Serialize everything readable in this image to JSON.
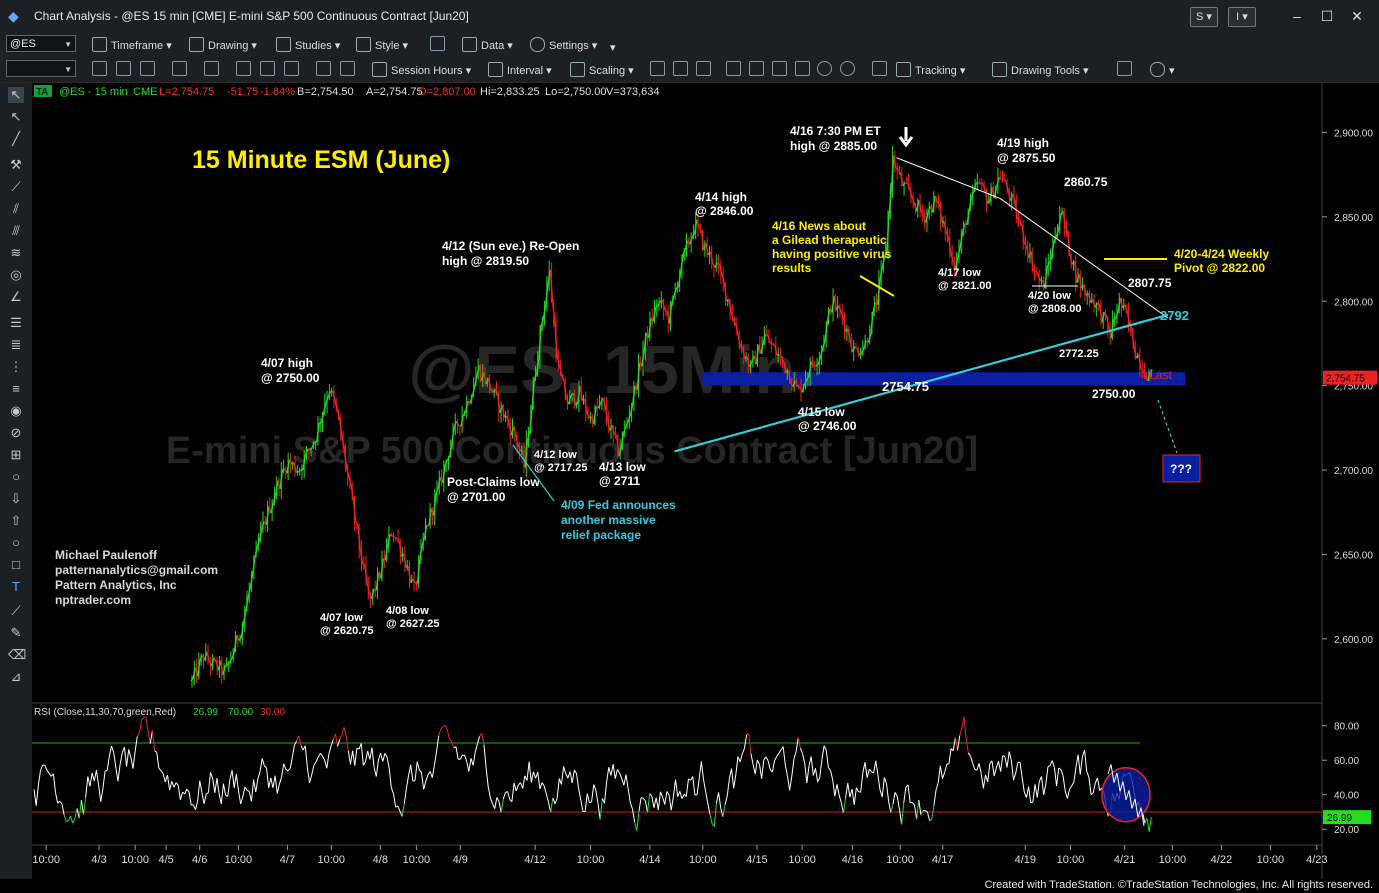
{
  "window": {
    "title": "Chart Analysis - @ES 15 min [CME] E-mini S&P 500 Continuous Contract [Jun20]",
    "s_button": "S",
    "i_button": "I",
    "minimize": "–",
    "maximize": "☐",
    "close": "✕"
  },
  "toolbar1": {
    "symbol": "@ES",
    "timeframe": "Timeframe",
    "drawing": "Drawing",
    "studies": "Studies",
    "style": "Style",
    "data": "Data",
    "settings": "Settings"
  },
  "toolbar2": {
    "session_hours": "Session Hours",
    "interval": "Interval",
    "scaling": "Scaling",
    "tracking": "Tracking",
    "drawing_tools": "Drawing Tools"
  },
  "status": {
    "ta": "TA",
    "symbol": "@ES - 15 min",
    "exchange": "CME",
    "last": "L=2,754.75",
    "change": "-51.75",
    "pct": "-1.84%",
    "bid": "B=2,754.50",
    "ask": "A=2,754.75",
    "open": "O=2,807.00",
    "high": "Hi=2,833.25",
    "low": "Lo=2,750.00",
    "volume": "V=373,634"
  },
  "watermark": {
    "line1": "@ES, 15Min",
    "line2": "E-mini S&P 500 Continuous Contract [Jun20]"
  },
  "annotations": {
    "title": "15 Minute ESM (June)",
    "a_416_hi_1": "4/16 7:30 PM ET",
    "a_416_hi_2": "high @ 2885.00",
    "a_419_1": "4/19 high",
    "a_419_2": "@ 2875.50",
    "a_2860": "2860.75",
    "a_414_1": "4/14 high",
    "a_414_2": "@ 2846.00",
    "a_news_1": "4/16 News about",
    "a_news_2": "a Gilead therapeutic",
    "a_news_3": "having positive virus",
    "a_news_4": "results",
    "a_412_1": "4/12 (Sun eve.) Re-Open",
    "a_412_2": "high @ 2819.50",
    "a_417_1": "4/17 low",
    "a_417_2": "@ 2821.00",
    "a_pivot_1": "4/20-4/24 Weekly",
    "a_pivot_2": "Pivot @ 2822.00",
    "a_2807": "2807.75",
    "a_420_1": "4/20 low",
    "a_420_2": "@ 2808.00",
    "a_2792": "2792",
    "a_2772": "2772.25",
    "a_last": "Last",
    "a_2754": "2754.75",
    "a_2750": "2750.00",
    "a_407hi_1": "4/07 high",
    "a_407hi_2": "@ 2750.00",
    "a_415_1": "4/15 low",
    "a_415_2": "@ 2746.00",
    "a_412lo_1": "4/12 low",
    "a_412lo_2": "@ 2717.25",
    "a_413_1": "4/13 low",
    "a_413_2": "@ 2711",
    "a_pc_1": "Post-Claims low",
    "a_pc_2": "@ 2701.00",
    "a_fed_1": "4/09 Fed announces",
    "a_fed_2": "another massive",
    "a_fed_3": "relief package",
    "a_qqq": "???",
    "a_407lo_1": "4/07 low",
    "a_407lo_2": "@ 2620.75",
    "a_408_1": "4/08 low",
    "a_408_2": "@ 2627.25",
    "author_1": "Michael Paulenoff",
    "author_2": "patternanalytics@gmail.com",
    "author_3": "Pattern Analytics, Inc",
    "author_4": "nptrader.com"
  },
  "rsi": {
    "label": "RSI (Close,11,30,70,green,Red)",
    "value": "26.99",
    "ob": "70.00",
    "os": "30.00"
  },
  "colors": {
    "up": "#22dd22",
    "down": "#ee2222",
    "trend": "#33ccdd",
    "zone": "#0a1ea0",
    "annot_white": "#ffffff",
    "annot_yellow": "#ffee00",
    "annot_cyan": "#33ccdd"
  },
  "footer": "Created with TradeStation. ©TradeStation Technologies, Inc. All rights reserved.",
  "chart_data": {
    "type": "candlestick",
    "price_axis": [
      "2,900.00",
      "2,850.00",
      "2,800.00",
      "2,750.00",
      "2,700.00",
      "2,650.00",
      "2,600.00"
    ],
    "price_ticks": [
      2900,
      2850,
      2800,
      2750,
      2700,
      2650,
      2600
    ],
    "price_range": [
      2562,
      2921
    ],
    "last_badge": "2,754.75",
    "last_price": 2754.75,
    "rsi_axis": [
      "80.00",
      "60.00",
      "40.00",
      "20.00"
    ],
    "rsi_ticks": [
      80,
      60,
      40,
      20
    ],
    "rsi_range": [
      12,
      92
    ],
    "rsi_badge": "26.99",
    "time_labels": [
      "10:00",
      "4/3",
      "10:00",
      "4/5",
      "4/6",
      "10:00",
      "4/7",
      "10:00",
      "4/8",
      "10:00",
      "4/9",
      "4/12",
      "10:00",
      "4/14",
      "10:00",
      "4/15",
      "10:00",
      "4/16",
      "10:00",
      "4/17",
      "4/19",
      "10:00",
      "4/21",
      "10:00",
      "4/22",
      "10:00",
      "4/23"
    ],
    "time_frac": [
      0.011,
      0.052,
      0.08,
      0.104,
      0.13,
      0.16,
      0.198,
      0.232,
      0.27,
      0.298,
      0.332,
      0.39,
      0.433,
      0.479,
      0.52,
      0.562,
      0.597,
      0.636,
      0.673,
      0.706,
      0.77,
      0.805,
      0.847,
      0.884,
      0.922,
      0.96,
      0.996
    ],
    "price_path": [
      [
        0.0,
        2575
      ],
      [
        0.01,
        2590
      ],
      [
        0.018,
        2585
      ],
      [
        0.03,
        2580
      ],
      [
        0.045,
        2610
      ],
      [
        0.06,
        2660
      ],
      [
        0.075,
        2690
      ],
      [
        0.085,
        2705
      ],
      [
        0.095,
        2700
      ],
      [
        0.11,
        2720
      ],
      [
        0.122,
        2750
      ],
      [
        0.13,
        2730
      ],
      [
        0.14,
        2690
      ],
      [
        0.15,
        2650
      ],
      [
        0.158,
        2621
      ],
      [
        0.168,
        2640
      ],
      [
        0.178,
        2665
      ],
      [
        0.188,
        2650
      ],
      [
        0.198,
        2628
      ],
      [
        0.208,
        2665
      ],
      [
        0.22,
        2690
      ],
      [
        0.232,
        2720
      ],
      [
        0.245,
        2740
      ],
      [
        0.255,
        2760
      ],
      [
        0.265,
        2750
      ],
      [
        0.272,
        2740
      ],
      [
        0.28,
        2730
      ],
      [
        0.288,
        2720
      ],
      [
        0.296,
        2702
      ],
      [
        0.304,
        2750
      ],
      [
        0.312,
        2790
      ],
      [
        0.318,
        2819
      ],
      [
        0.326,
        2760
      ],
      [
        0.334,
        2740
      ],
      [
        0.345,
        2745
      ],
      [
        0.355,
        2730
      ],
      [
        0.365,
        2740
      ],
      [
        0.372,
        2725
      ],
      [
        0.38,
        2711
      ],
      [
        0.388,
        2730
      ],
      [
        0.395,
        2750
      ],
      [
        0.405,
        2780
      ],
      [
        0.415,
        2800
      ],
      [
        0.425,
        2790
      ],
      [
        0.435,
        2820
      ],
      [
        0.448,
        2846
      ],
      [
        0.458,
        2830
      ],
      [
        0.468,
        2820
      ],
      [
        0.478,
        2800
      ],
      [
        0.488,
        2775
      ],
      [
        0.498,
        2760
      ],
      [
        0.51,
        2780
      ],
      [
        0.52,
        2770
      ],
      [
        0.53,
        2760
      ],
      [
        0.54,
        2746
      ],
      [
        0.55,
        2760
      ],
      [
        0.56,
        2770
      ],
      [
        0.57,
        2800
      ],
      [
        0.58,
        2790
      ],
      [
        0.59,
        2770
      ],
      [
        0.6,
        2775
      ],
      [
        0.61,
        2800
      ],
      [
        0.618,
        2830
      ],
      [
        0.624,
        2885
      ],
      [
        0.632,
        2870
      ],
      [
        0.642,
        2860
      ],
      [
        0.652,
        2850
      ],
      [
        0.662,
        2860
      ],
      [
        0.672,
        2840
      ],
      [
        0.68,
        2821
      ],
      [
        0.69,
        2850
      ],
      [
        0.7,
        2870
      ],
      [
        0.71,
        2860
      ],
      [
        0.72,
        2875
      ],
      [
        0.73,
        2860
      ],
      [
        0.74,
        2840
      ],
      [
        0.75,
        2820
      ],
      [
        0.758,
        2808
      ],
      [
        0.766,
        2830
      ],
      [
        0.774,
        2855
      ],
      [
        0.78,
        2835
      ],
      [
        0.788,
        2815
      ],
      [
        0.796,
        2805
      ],
      [
        0.804,
        2800
      ],
      [
        0.812,
        2790
      ],
      [
        0.818,
        2780
      ],
      [
        0.826,
        2800
      ],
      [
        0.833,
        2790
      ],
      [
        0.84,
        2772
      ],
      [
        0.848,
        2760
      ],
      [
        0.855,
        2755
      ]
    ],
    "rsi_series_seed": 7,
    "trendline_up": [
      [
        0.43,
        2711
      ],
      [
        0.87,
        2792
      ]
    ],
    "trendline_down_1": [
      [
        0.628,
        2885
      ],
      [
        0.72,
        2861
      ]
    ],
    "trendline_down_2": [
      [
        0.72,
        2861
      ],
      [
        0.87,
        2790
      ]
    ],
    "support_zone": [
      0.455,
      0.885,
      2750,
      2758
    ]
  }
}
